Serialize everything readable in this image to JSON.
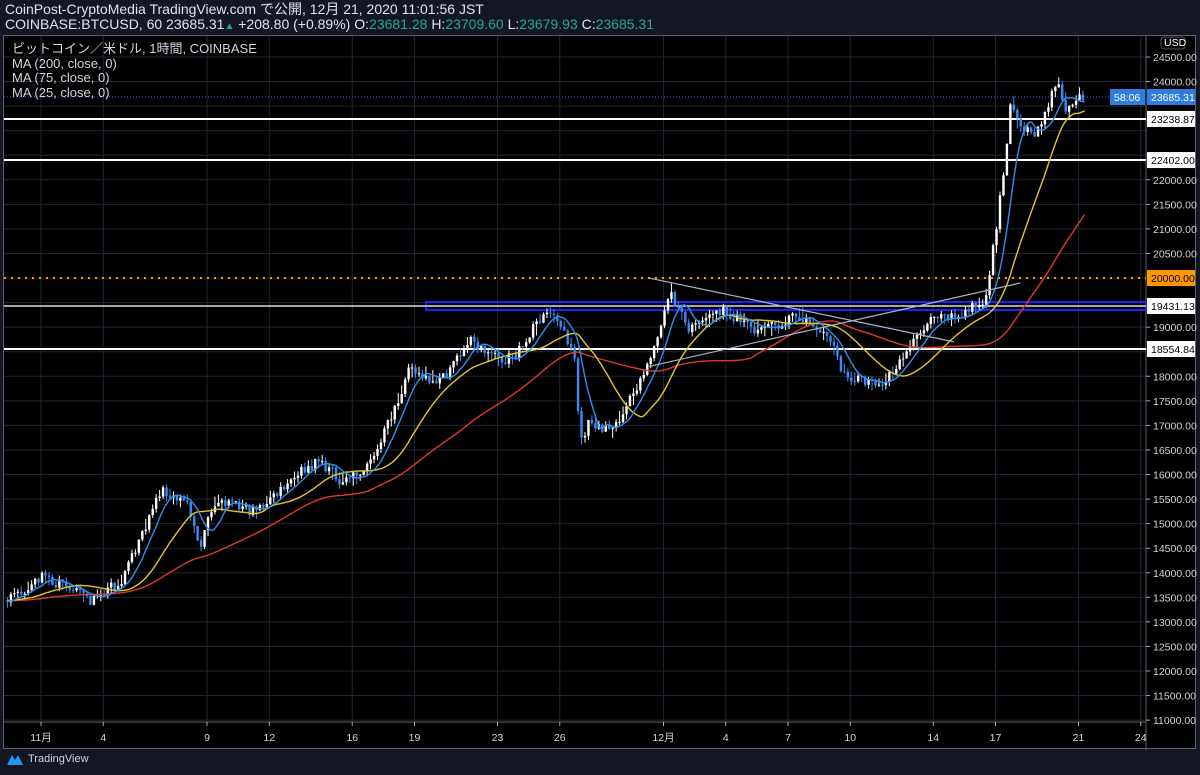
{
  "header": {
    "line1": "CoinPost-CryptoMedia TradingView.com で公開, 12月 21, 2020 11:01:56 JST",
    "symbol": "COINBASE:BTCUSD, 60",
    "last": "23685.31",
    "change": "+208.80 (+0.89%)",
    "o_label": "O:",
    "o": "23681.28",
    "h_label": "H:",
    "h": "23709.60",
    "l_label": "L:",
    "l": "23679.93",
    "c_label": "C:",
    "c": "23685.31"
  },
  "legend": {
    "title": "ビットコイン／米ドル, 1時間, COINBASE",
    "ma200": "MA (200, close, 0)",
    "ma75": "MA (75, close, 0)",
    "ma25": "MA (25, close, 0)"
  },
  "colors": {
    "ma200": "#e0392b",
    "ma75": "#e4c629",
    "ma25": "#2f8ff0",
    "up": "#ffffff",
    "down": "#3d8af7",
    "orange": "#ff9800",
    "band": "#1f1fff",
    "grid": "#1f2535",
    "current": "#2962ff"
  },
  "footer": {
    "brand": "TradingView"
  },
  "chart_data": {
    "type": "candlestick",
    "title": "BTCUSD 1h",
    "currency_label": "USD",
    "ylim": [
      11000,
      24500
    ],
    "ytick_step": 500,
    "xticks": [
      {
        "d": 0,
        "label": "11月"
      },
      {
        "d": 3,
        "label": "4"
      },
      {
        "d": 8,
        "label": "9"
      },
      {
        "d": 11,
        "label": "12"
      },
      {
        "d": 15,
        "label": "16"
      },
      {
        "d": 18,
        "label": "19"
      },
      {
        "d": 22,
        "label": "23"
      },
      {
        "d": 25,
        "label": "26"
      },
      {
        "d": 30,
        "label": "12月"
      },
      {
        "d": 33,
        "label": "4"
      },
      {
        "d": 36,
        "label": "7"
      },
      {
        "d": 39,
        "label": "10"
      },
      {
        "d": 43,
        "label": "14"
      },
      {
        "d": 46,
        "label": "17"
      },
      {
        "d": 50,
        "label": "21"
      },
      {
        "d": 53,
        "label": "24"
      }
    ],
    "price_path": [
      [
        -1.7,
        13425
      ],
      [
        0.2,
        13935
      ],
      [
        2.4,
        13430
      ],
      [
        3.9,
        13830
      ],
      [
        5.8,
        15660
      ],
      [
        7,
        15460
      ],
      [
        7.7,
        14545
      ],
      [
        8.4,
        15460
      ],
      [
        10.4,
        15250
      ],
      [
        12.5,
        16070
      ],
      [
        13.5,
        16275
      ],
      [
        14.5,
        15870
      ],
      [
        15.7,
        16070
      ],
      [
        16.6,
        16890
      ],
      [
        17.8,
        18110
      ],
      [
        19.3,
        17910
      ],
      [
        20.7,
        18720
      ],
      [
        22.2,
        18310
      ],
      [
        23.1,
        18515
      ],
      [
        24.3,
        19330
      ],
      [
        25,
        19125
      ],
      [
        25.8,
        18310
      ],
      [
        26,
        16680
      ],
      [
        26.5,
        17090
      ],
      [
        27.5,
        16890
      ],
      [
        28.4,
        17500
      ],
      [
        29.6,
        18515
      ],
      [
        30.3,
        19740
      ],
      [
        31.3,
        18920
      ],
      [
        32.8,
        19330
      ],
      [
        34.7,
        18920
      ],
      [
        36.6,
        19230
      ],
      [
        38.1,
        18720
      ],
      [
        38.8,
        18000
      ],
      [
        40.5,
        17800
      ],
      [
        41.4,
        18310
      ],
      [
        42.9,
        19125
      ],
      [
        44.3,
        19230
      ],
      [
        45.5,
        19530
      ],
      [
        46,
        20760
      ],
      [
        46.5,
        22380
      ],
      [
        46.8,
        23600
      ],
      [
        47.2,
        22990
      ],
      [
        48.2,
        22990
      ],
      [
        49,
        24010
      ],
      [
        49.5,
        23400
      ],
      [
        50.1,
        23810
      ],
      [
        50.3,
        23685.31
      ]
    ],
    "levels": [
      {
        "price": 23238.87,
        "label": "23238.87",
        "style": "white"
      },
      {
        "price": 22402.0,
        "label": "22402.00",
        "style": "white"
      },
      {
        "price": 20000.0,
        "label": "20000.00",
        "style": "orange-dotted"
      },
      {
        "price": 19431.13,
        "label": "19431.13",
        "style": "blue-band"
      },
      {
        "price": 18554.84,
        "label": "18554.84",
        "style": "white"
      }
    ],
    "current_price": {
      "price": 23685.31,
      "label": "23685.31",
      "countdown": "58:06"
    },
    "trendlines": [
      [
        [
          29.3,
          20000
        ],
        [
          44,
          18700
        ]
      ],
      [
        [
          29.3,
          18200
        ],
        [
          47.2,
          19900
        ]
      ]
    ],
    "moving_averages": [
      "MA200",
      "MA75",
      "MA25"
    ]
  }
}
